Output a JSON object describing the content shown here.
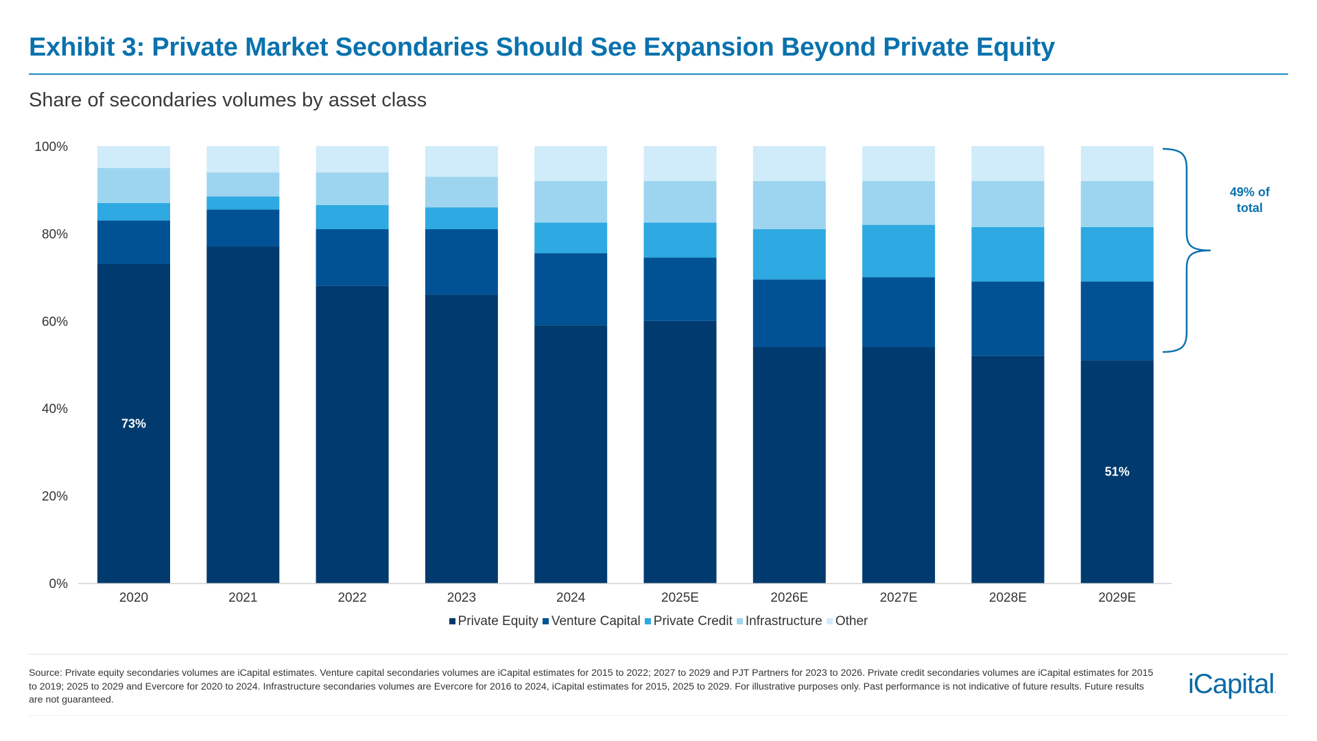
{
  "title": "Exhibit 3: Private Market Secondaries Should See Expansion Beyond Private Equity",
  "subtitle": "Share of secondaries volumes by asset class",
  "chart_data": {
    "type": "bar",
    "stacked": true,
    "categories": [
      "2020",
      "2021",
      "2022",
      "2023",
      "2024",
      "2025E",
      "2026E",
      "2027E",
      "2028E",
      "2029E"
    ],
    "series": [
      {
        "name": "Private Equity",
        "color": "#003a6e",
        "values": [
          73,
          77,
          68,
          66,
          59,
          60,
          54,
          54,
          52,
          51
        ]
      },
      {
        "name": "Venture Capital",
        "color": "#005294",
        "values": [
          10,
          8.5,
          13,
          15,
          16.5,
          14.5,
          15.5,
          16,
          17,
          18
        ]
      },
      {
        "name": "Private Credit",
        "color": "#2ea9e1",
        "values": [
          4,
          3,
          5.5,
          5,
          7,
          8,
          11.5,
          12,
          12.5,
          12.5
        ]
      },
      {
        "name": "Infrastructure",
        "color": "#9dd5f0",
        "values": [
          8,
          5.5,
          7.5,
          7,
          9.5,
          9.5,
          11,
          10,
          10.5,
          10.5
        ]
      },
      {
        "name": "Other",
        "color": "#d0ebf9",
        "values": [
          5,
          6,
          6,
          7,
          8,
          8,
          8,
          8,
          8,
          8
        ]
      }
    ],
    "ylim": [
      0,
      100
    ],
    "yticks": [
      "0%",
      "20%",
      "40%",
      "60%",
      "80%",
      "100%"
    ],
    "grid": false,
    "legend_placement": "bottom",
    "data_labels": [
      {
        "category": "2020",
        "text": "73%"
      },
      {
        "category": "2029E",
        "text": "51%"
      }
    ],
    "annotation": {
      "text_line1": "49% of",
      "text_line2": "total",
      "color": "#0a72ad"
    }
  },
  "source": "Source: Private equity secondaries volumes are iCapital estimates. Venture capital secondaries volumes are iCapital estimates for 2015 to 2022; 2027 to 2029 and PJT Partners for 2023 to 2026. Private credit secondaries volumes are iCapital estimates for 2015 to 2019; 2025 to 2029 and Evercore for 2020 to 2024. Infrastructure secondaries volumes are Evercore for 2016 to 2024, iCapital estimates for 2015, 2025 to 2029. For illustrative purposes only. Past performance is not indicative of future results. Future results are not guaranteed.",
  "logo": "iCapital"
}
